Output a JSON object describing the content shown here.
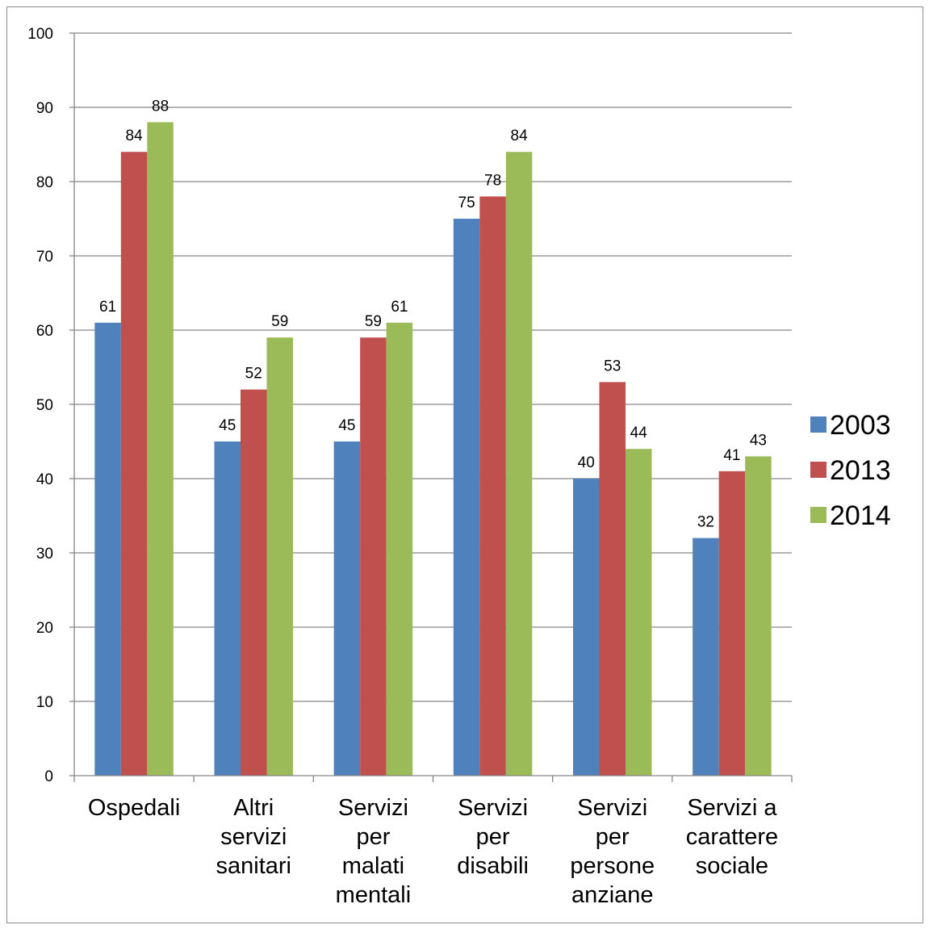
{
  "chart_data": {
    "type": "bar",
    "categories": [
      [
        "Ospedali"
      ],
      [
        "Altri",
        "servizi",
        "sanitari"
      ],
      [
        "Servizi",
        "per",
        "malati",
        "mentali"
      ],
      [
        "Servizi",
        "per",
        "disabili"
      ],
      [
        "Servizi",
        "per",
        "persone",
        "anziane"
      ],
      [
        "Servizi a",
        "carattere",
        "sociale"
      ]
    ],
    "series": [
      {
        "name": "2003",
        "color": "#4f81bd",
        "values": [
          61,
          45,
          45,
          75,
          40,
          32
        ]
      },
      {
        "name": "2013",
        "color": "#c0504d",
        "values": [
          84,
          52,
          59,
          78,
          53,
          41
        ]
      },
      {
        "name": "2014",
        "color": "#9bbb59",
        "values": [
          88,
          59,
          61,
          84,
          44,
          43
        ]
      }
    ],
    "ylim": [
      0,
      100
    ],
    "yticks": [
      0,
      10,
      20,
      30,
      40,
      50,
      60,
      70,
      80,
      90,
      100
    ],
    "grid": true,
    "legend_position": "right",
    "data_labels": true
  }
}
